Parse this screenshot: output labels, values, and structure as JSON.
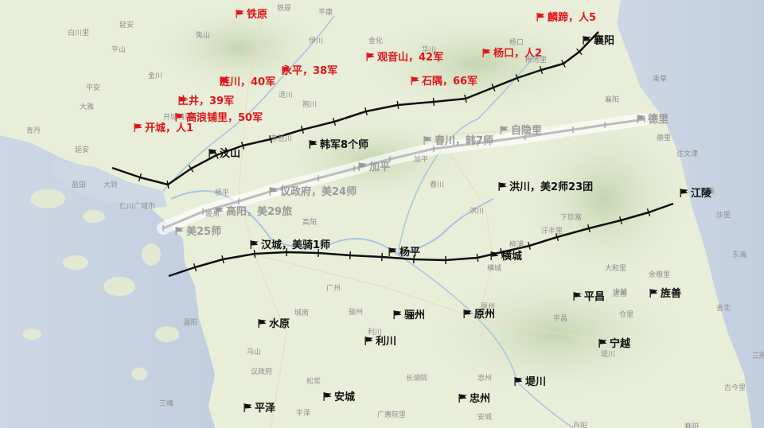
{
  "colors": {
    "sea": "#c7d3e3",
    "land": "#e9eed9",
    "mountain": "#cfdcbc",
    "river": "#a9c3e0",
    "line_black": "#0f0f0f",
    "line_gray": "#b4b4b4",
    "red_label": "#e0151b",
    "black_label": "#111111",
    "gray_label": "#9a9a9a"
  },
  "icons": {
    "red_flag": "red-flag-icon",
    "black_flag": "black-flag-icon",
    "gray_flag": "gray-flag-icon"
  },
  "red_labels": [
    {
      "id": "tiewon",
      "text": "铁原"
    },
    {
      "id": "linyu",
      "text": "麟蹄，人5"
    },
    {
      "id": "guanyinshan",
      "text": "观音山，42军"
    },
    {
      "id": "yangkou",
      "text": "杨口，人2"
    },
    {
      "id": "yongping",
      "text": "永平，38军"
    },
    {
      "id": "lianchuan",
      "text": "涟川，40军"
    },
    {
      "id": "shiyu",
      "text": "石隅，66军"
    },
    {
      "id": "tujing",
      "text": "土井，39军"
    },
    {
      "id": "gaolang",
      "text": "高浪铺里，50军"
    },
    {
      "id": "kaicheng",
      "text": "开城，人1"
    }
  ],
  "black_labels": [
    {
      "id": "xiangyang",
      "text": "襄阳"
    },
    {
      "id": "wenshan",
      "text": "汶山"
    },
    {
      "id": "hanjun",
      "text": "韩军8个师"
    },
    {
      "id": "hongchuan",
      "text": "洪川，美2师23团"
    },
    {
      "id": "jiangling",
      "text": "江陵"
    },
    {
      "id": "hancheng",
      "text": "汉城，美骑1师"
    },
    {
      "id": "yangping",
      "text": "杨平"
    },
    {
      "id": "hengcheng",
      "text": "横城"
    },
    {
      "id": "pingchang",
      "text": "平昌"
    },
    {
      "id": "jingshan",
      "text": "旌善"
    },
    {
      "id": "shuiyuan",
      "text": "水原"
    },
    {
      "id": "lizhou",
      "text": "骊州"
    },
    {
      "id": "yuanzhou",
      "text": "原州"
    },
    {
      "id": "lichuan",
      "text": "利川"
    },
    {
      "id": "ningyue",
      "text": "宁越"
    },
    {
      "id": "tichuan",
      "text": "堤川"
    },
    {
      "id": "anchen",
      "text": "安城"
    },
    {
      "id": "zhongzhou",
      "text": "忠州"
    },
    {
      "id": "pingze",
      "text": "平泽"
    }
  ],
  "gray_labels": [
    {
      "id": "chunchuan",
      "text": "春川，韩7师"
    },
    {
      "id": "ziyinli",
      "text": "自隐里"
    },
    {
      "id": "deli",
      "text": "德里"
    },
    {
      "id": "jiaping",
      "text": "加平"
    },
    {
      "id": "yizhengfu",
      "text": "议政府，美24师"
    },
    {
      "id": "gaoyang",
      "text": "高阳，美29旅"
    },
    {
      "id": "mei25",
      "text": "美25师"
    }
  ],
  "base_labels": [
    "延安",
    "白川里",
    "平山",
    "金川",
    "平安",
    "大雅",
    "开城特别市",
    "青丹",
    "延安",
    "盐田",
    "大铃",
    "仁川广域市",
    "兔山",
    "伊川",
    "铁原",
    "金化",
    "平康",
    "华川",
    "杨口",
    "楸池里",
    "襄阳",
    "束草",
    "注文津",
    "德里",
    "江陵",
    "涟川",
    "东豆川",
    "抱川",
    "加平",
    "春川",
    "洪川",
    "横城",
    "原州",
    "骊州",
    "利川",
    "广州",
    "城南",
    "杨平",
    "坡州",
    "高阳",
    "议政府",
    "平泽",
    "安城",
    "忠州",
    "堤川",
    "宁越",
    "旌善",
    "平昌",
    "东海",
    "三陟",
    "乌山",
    "松炭",
    "三峰",
    "长湖院",
    "广惠院里",
    "温阳",
    "下珍富",
    "大和里",
    "余粮里",
    "仓里",
    "丹阳",
    "春阳",
    "古今里",
    "舍北",
    "沙里",
    "柳浦",
    "汗丰里"
  ]
}
